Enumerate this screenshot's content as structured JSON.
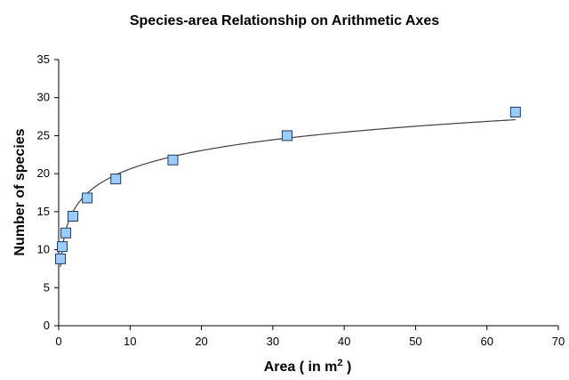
{
  "chart_data": {
    "type": "scatter",
    "title": "Species-area Relationship on Arithmetic Axes",
    "xlabel": "Area ( in m",
    "xlabel_superscript": "2",
    "xlabel_suffix": " )",
    "ylabel": "Number of species",
    "xlim": [
      0,
      70
    ],
    "ylim": [
      0,
      35
    ],
    "xticks": [
      0,
      10,
      20,
      30,
      40,
      50,
      60,
      70
    ],
    "yticks": [
      0,
      5,
      10,
      15,
      20,
      25,
      30,
      35
    ],
    "grid": false,
    "legend": "none",
    "marker": "square",
    "marker_color": "#99ccff",
    "trendline": {
      "type": "logarithmic",
      "color": "#404040"
    },
    "series": [
      {
        "points": [
          {
            "x": 0.25,
            "y": 8.8
          },
          {
            "x": 0.5,
            "y": 10.4
          },
          {
            "x": 1,
            "y": 12.2
          },
          {
            "x": 2,
            "y": 14.4
          },
          {
            "x": 4,
            "y": 16.8
          },
          {
            "x": 8,
            "y": 19.3
          },
          {
            "x": 16,
            "y": 21.8
          },
          {
            "x": 32,
            "y": 25
          },
          {
            "x": 64,
            "y": 28.1
          }
        ]
      }
    ]
  }
}
